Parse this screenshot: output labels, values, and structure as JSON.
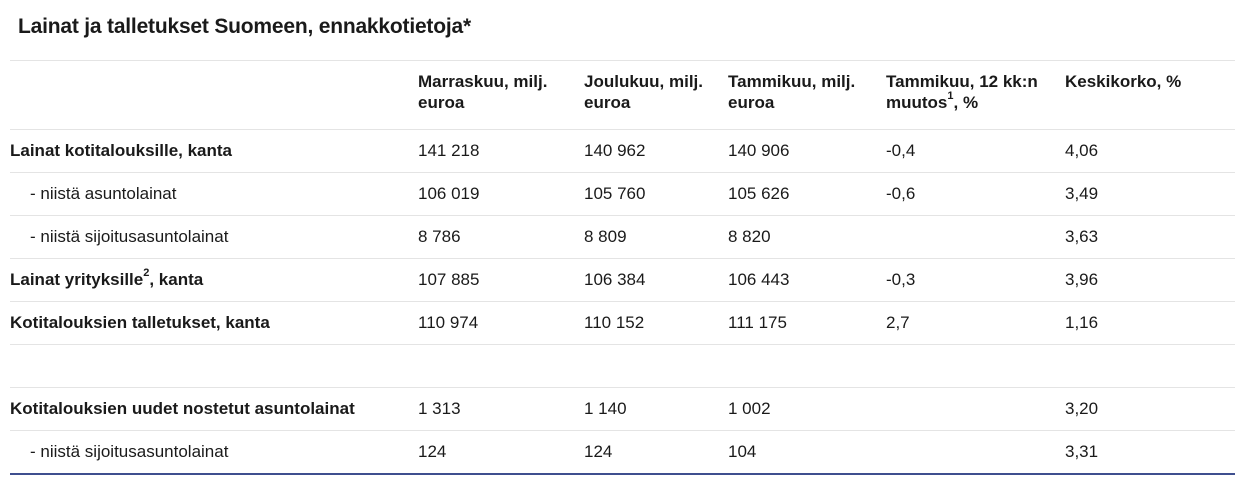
{
  "title": "Lainat ja talletukset Suomeen, ennakkotietoja*",
  "headers": {
    "nov": "Marraskuu, milj. euroa",
    "dec": "Joulukuu, milj. euroa",
    "jan": "Tammikuu, milj. euroa",
    "chg_pre": "Tammikuu, 12 kk:n muutos",
    "chg_sup": "1",
    "chg_post": ", %",
    "rate": "Keskikorko, %"
  },
  "rows": [
    {
      "label": "Lainat kotitalouksille, kanta",
      "nov": "141 218",
      "dec": "140 962",
      "jan": "140 906",
      "chg": "-0,4",
      "rate": "4,06"
    },
    {
      "label": "- niistä asuntolainat",
      "nov": "106 019",
      "dec": "105 760",
      "jan": "105 626",
      "chg": "-0,6",
      "rate": "3,49"
    },
    {
      "label": "- niistä sijoitusasuntolainat",
      "nov": "8 786",
      "dec": "8 809",
      "jan": "8 820",
      "chg": "",
      "rate": "3,63"
    },
    {
      "label_pre": "Lainat yrityksille",
      "label_sup": "2",
      "label_post": ", kanta",
      "nov": "107 885",
      "dec": "106 384",
      "jan": "106 443",
      "chg": "-0,3",
      "rate": "3,96"
    },
    {
      "label": "Kotitalouksien talletukset, kanta",
      "nov": "110 974",
      "dec": "110 152",
      "jan": "111 175",
      "chg": "2,7",
      "rate": "1,16"
    },
    {
      "label": "Kotitalouksien uudet nostetut asuntolainat",
      "nov": "1 313",
      "dec": "1 140",
      "jan": "1 002",
      "chg": "",
      "rate": "3,20"
    },
    {
      "label": "- niistä sijoitusasuntolainat",
      "nov": "124",
      "dec": "124",
      "jan": "104",
      "chg": "",
      "rate": "3,31"
    }
  ]
}
